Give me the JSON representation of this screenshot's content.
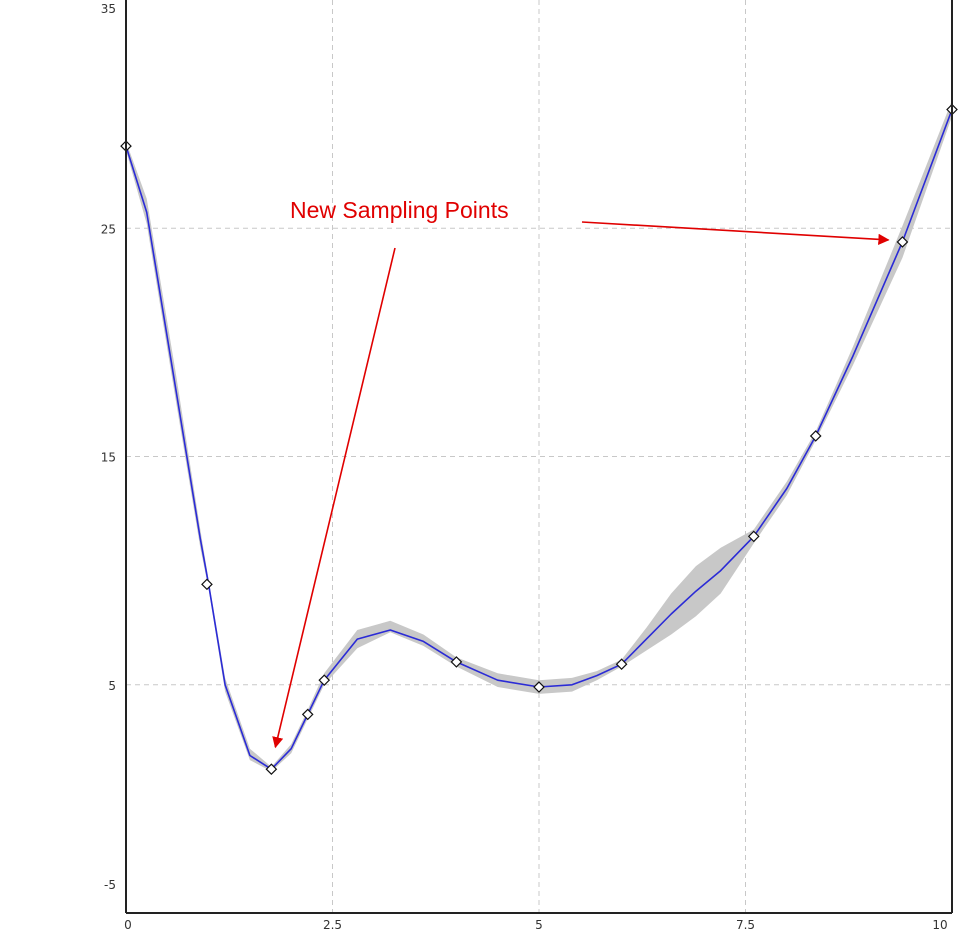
{
  "chart_data": {
    "type": "line",
    "title": "",
    "xlabel": "",
    "ylabel": "",
    "xlim": [
      0,
      10
    ],
    "ylim": [
      -5,
      35
    ],
    "grid": true,
    "grid_style": "dashed",
    "x_ticks": [
      0,
      2.5,
      5,
      7.5,
      10
    ],
    "x_tick_labels": [
      "0",
      "2.5",
      "5",
      "7.5",
      "10"
    ],
    "y_ticks": [
      -5,
      5,
      15,
      25,
      35
    ],
    "y_tick_labels": [
      "-5",
      "5",
      "15",
      "25",
      "35"
    ],
    "series": [
      {
        "kind": "band",
        "color": "#c8c8c8",
        "x": [
          0.0,
          0.25,
          0.6,
          0.9,
          1.0,
          1.2,
          1.5,
          1.76,
          2.0,
          2.2,
          2.4,
          2.8,
          3.2,
          3.6,
          4.0,
          4.5,
          5.0,
          5.4,
          5.7,
          6.0,
          6.3,
          6.6,
          6.9,
          7.2,
          7.6,
          8.0,
          8.35,
          8.8,
          9.4,
          10.0
        ],
        "upper": [
          28.8,
          26.3,
          18.7,
          11.8,
          9.6,
          5.3,
          2.2,
          1.4,
          2.4,
          3.9,
          5.5,
          7.4,
          7.8,
          7.2,
          6.2,
          5.5,
          5.2,
          5.3,
          5.6,
          6.1,
          7.5,
          9.0,
          10.2,
          11.0,
          11.8,
          13.9,
          16.1,
          19.8,
          25.1,
          30.6
        ],
        "lower": [
          28.4,
          25.2,
          17.5,
          11.0,
          9.2,
          4.7,
          1.7,
          1.2,
          2.0,
          3.5,
          5.0,
          6.6,
          7.3,
          6.7,
          5.8,
          4.9,
          4.6,
          4.7,
          5.2,
          5.8,
          6.5,
          7.2,
          8.0,
          9.0,
          11.2,
          13.3,
          15.7,
          19.0,
          23.7,
          29.9
        ]
      },
      {
        "kind": "line",
        "color": "#2b2bd6",
        "x": [
          0.0,
          0.25,
          0.6,
          0.9,
          1.0,
          1.2,
          1.5,
          1.76,
          2.0,
          2.2,
          2.4,
          2.8,
          3.2,
          3.6,
          4.0,
          4.5,
          5.0,
          5.4,
          5.7,
          6.0,
          6.3,
          6.6,
          6.9,
          7.2,
          7.6,
          8.0,
          8.35,
          8.8,
          9.4,
          10.0
        ],
        "y": [
          28.6,
          25.7,
          18.0,
          11.4,
          9.4,
          5.0,
          1.9,
          1.3,
          2.2,
          3.7,
          5.2,
          7.0,
          7.4,
          6.9,
          6.0,
          5.2,
          4.9,
          5.0,
          5.4,
          5.9,
          7.0,
          8.1,
          9.1,
          10.0,
          11.5,
          13.6,
          15.9,
          19.4,
          24.4,
          30.2
        ]
      },
      {
        "kind": "points",
        "marker": "diamond",
        "x": [
          0.0,
          0.98,
          1.76,
          2.2,
          2.4,
          4.0,
          5.0,
          6.0,
          7.6,
          8.35,
          9.4,
          10.0
        ],
        "y": [
          28.6,
          9.4,
          1.3,
          3.7,
          5.2,
          6.0,
          4.9,
          5.9,
          11.5,
          15.9,
          24.4,
          30.2
        ]
      }
    ],
    "annotations": [
      {
        "text": "New Sampling Points",
        "color": "#e00000",
        "arrow_targets": [
          {
            "x": 1.76,
            "y": 1.3
          },
          {
            "x": 9.4,
            "y": 24.4
          }
        ]
      }
    ]
  }
}
